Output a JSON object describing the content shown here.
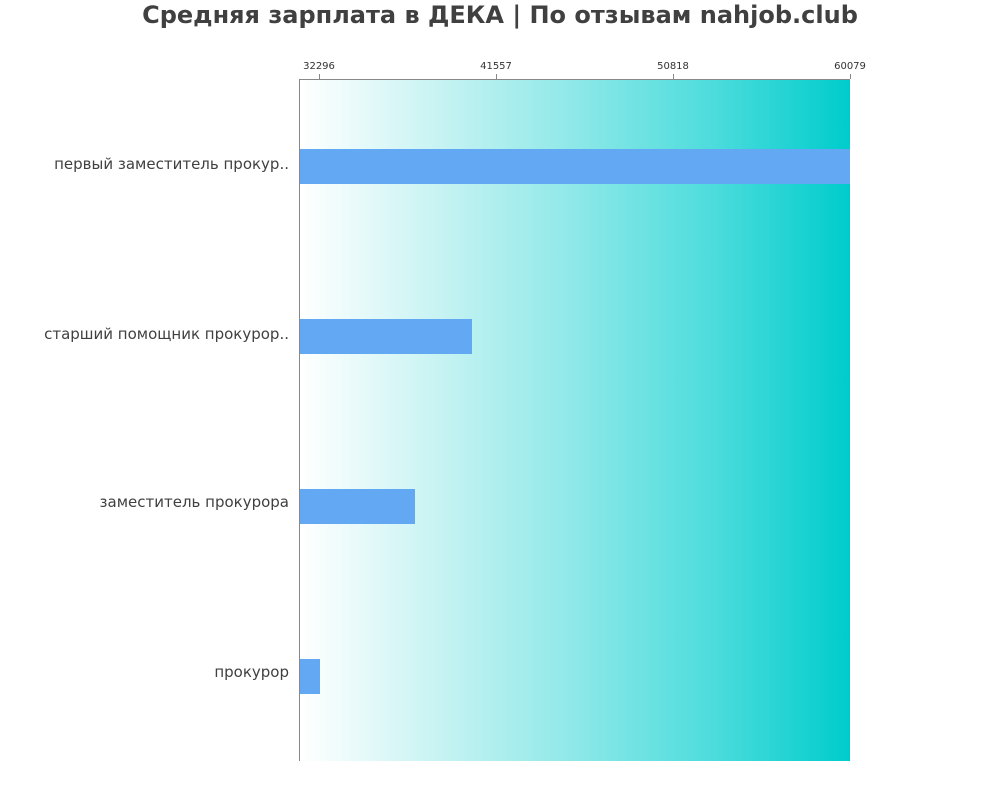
{
  "chart_data": {
    "type": "bar",
    "orientation": "horizontal",
    "title": "Средняя зарплата в ДЕКА | По отзывам nahjob.club",
    "xlabel": "",
    "ylabel": "",
    "categories": [
      "первый заместитель прокур..",
      "старший помощник прокурор..",
      "заместитель прокурора",
      "прокурор"
    ],
    "values": [
      60079,
      40300,
      37320,
      32350
    ],
    "xlim": [
      31302,
      60079
    ],
    "x_ticks": [
      "32296",
      "41557",
      "50818",
      "60079"
    ],
    "x_tick_values": [
      32296,
      41557,
      50818,
      60079
    ],
    "axis_position": "top",
    "grid": false,
    "legend": null,
    "bar_color": "#63a8f2",
    "background_gradient": [
      "#ffffff",
      "#00cccc"
    ]
  }
}
